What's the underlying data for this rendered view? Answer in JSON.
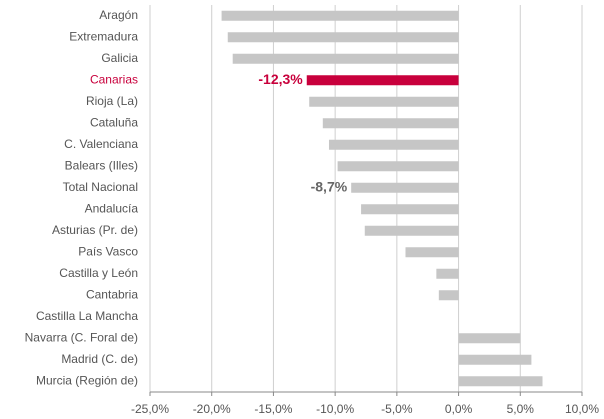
{
  "chart_data": {
    "type": "barh",
    "categories": [
      "Aragón",
      "Extremadura",
      "Galicia",
      "Canarias",
      "Rioja (La)",
      "Cataluña",
      "C. Valenciana",
      "Balears (Illes)",
      "Total Nacional",
      "Andalucía",
      "Asturias (Pr. de)",
      "País Vasco",
      "Castilla y León",
      "Cantabria",
      "Castilla  La Mancha",
      "Navarra (C. Foral de)",
      "Madrid (C. de)",
      "Murcia (Región de)"
    ],
    "values": [
      -19.2,
      -18.7,
      -18.3,
      -12.3,
      -12.1,
      -11.0,
      -10.5,
      -9.8,
      -8.7,
      -7.9,
      -7.6,
      -4.3,
      -1.8,
      -1.6,
      0,
      5.0,
      5.9,
      6.8
    ],
    "value_labels": [
      null,
      null,
      null,
      "-12,3%",
      null,
      null,
      null,
      null,
      "-8,7%",
      null,
      null,
      null,
      null,
      null,
      null,
      null,
      null,
      null
    ],
    "colors": [
      "#c6c6c6",
      "#c6c6c6",
      "#c6c6c6",
      "#c8003c",
      "#c6c6c6",
      "#c6c6c6",
      "#c6c6c6",
      "#c6c6c6",
      "#c6c6c6",
      "#c6c6c6",
      "#c6c6c6",
      "#c6c6c6",
      "#c6c6c6",
      "#c6c6c6",
      "#c6c6c6",
      "#c6c6c6",
      "#c6c6c6",
      "#c6c6c6"
    ],
    "xlim": [
      -25,
      10
    ],
    "xticks": [
      {
        "value": -25,
        "label": "-25,0%"
      },
      {
        "value": -20,
        "label": "-20,0%"
      },
      {
        "value": -15,
        "label": "-15,0%"
      },
      {
        "value": -10,
        "label": "-10,0%"
      },
      {
        "value": -5,
        "label": "-5,0%"
      },
      {
        "value": 0,
        "label": "0,0%"
      },
      {
        "value": 5,
        "label": "5,0%"
      },
      {
        "value": 10,
        "label": "10,0%"
      }
    ],
    "grid": true
  }
}
